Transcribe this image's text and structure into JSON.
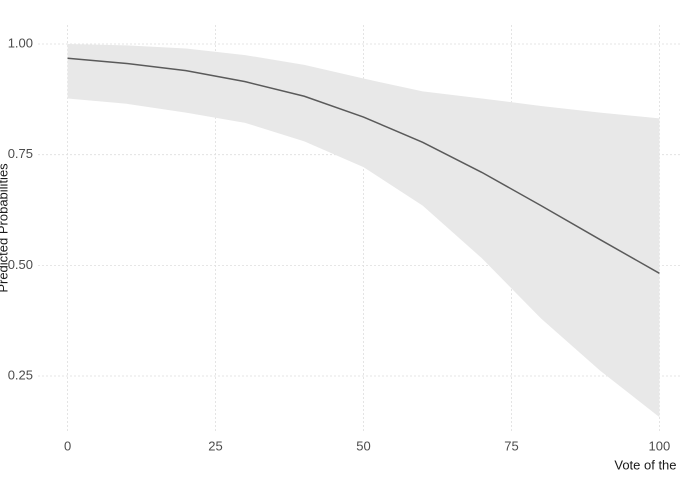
{
  "chart_data": {
    "type": "line",
    "x_label": "Vote of the PT majority",
    "y_label": "Predicted Probabilities",
    "x": [
      0,
      10,
      20,
      30,
      40,
      50,
      60,
      70,
      80,
      90,
      100
    ],
    "values": [
      0.968,
      0.956,
      0.94,
      0.915,
      0.882,
      0.835,
      0.778,
      0.71,
      0.635,
      0.558,
      0.482
    ],
    "upper": [
      1.0,
      0.997,
      0.99,
      0.975,
      0.953,
      0.922,
      0.893,
      0.877,
      0.86,
      0.845,
      0.832
    ],
    "lower": [
      0.877,
      0.865,
      0.845,
      0.822,
      0.78,
      0.722,
      0.635,
      0.516,
      0.38,
      0.262,
      0.157
    ],
    "color": "#5a5a5a",
    "ribbon_color": "#e8e8e8",
    "xlim": [
      -5,
      105
    ],
    "ylim": [
      0.1235,
      1.043
    ],
    "xticks": [
      0,
      25,
      50,
      75,
      100
    ],
    "yticks": [
      0.25,
      {
        "value": 0.5,
        "label": "0.50"
      },
      0.75,
      {
        "value": 1.0,
        "label": "1.00"
      }
    ],
    "grid": true
  }
}
